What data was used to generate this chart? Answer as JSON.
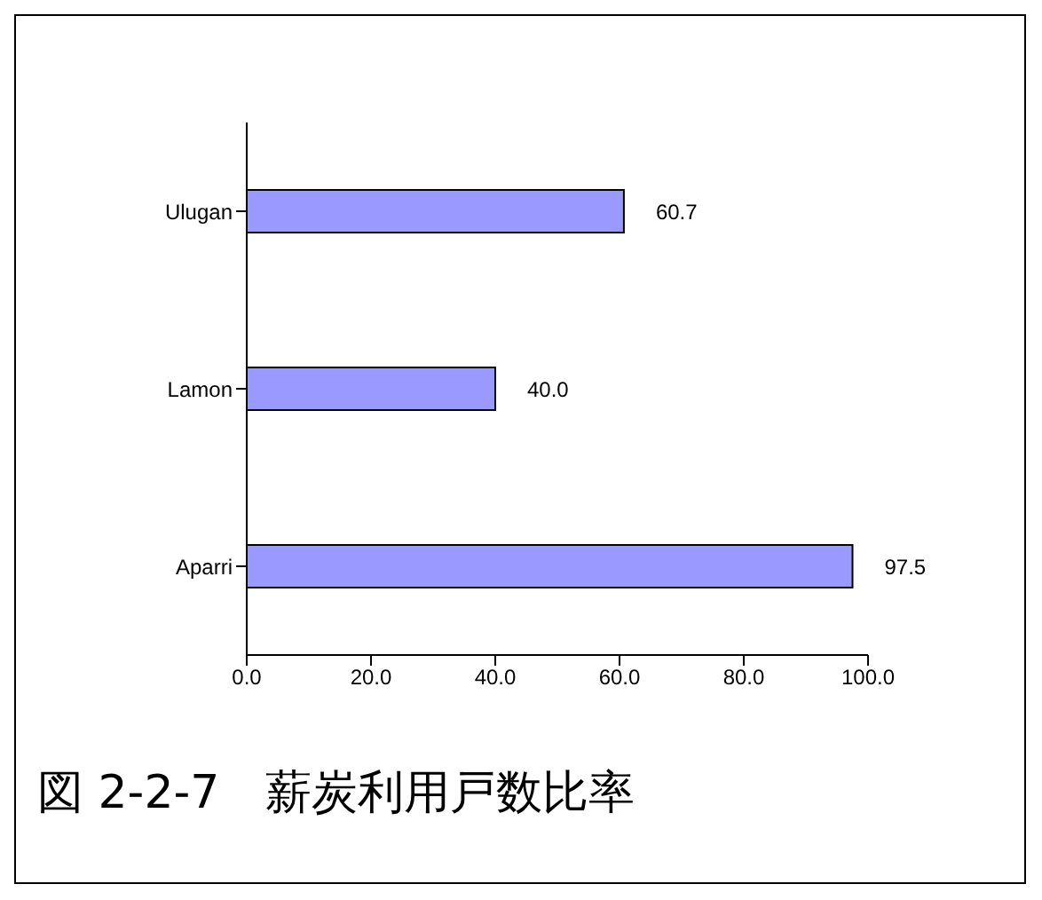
{
  "chart_data": {
    "type": "bar",
    "orientation": "horizontal",
    "title": "図 2-2-7　薪炭利用戸数比率",
    "categories": [
      "Ulugan",
      "Lamon",
      "Aparri"
    ],
    "values": [
      60.7,
      40.0,
      97.5
    ],
    "value_labels": [
      "60.7",
      "40.0",
      "97.5"
    ],
    "color": "#9999ff",
    "xlim": [
      0,
      100
    ],
    "xticks": [
      {
        "value": 0,
        "label": "0.0"
      },
      {
        "value": 20,
        "label": "20.0"
      },
      {
        "value": 40,
        "label": "40.0"
      },
      {
        "value": 60,
        "label": "60.0"
      },
      {
        "value": 80,
        "label": "80.0"
      },
      {
        "value": 100,
        "label": "100.0"
      }
    ],
    "grid": false,
    "legend": false
  }
}
